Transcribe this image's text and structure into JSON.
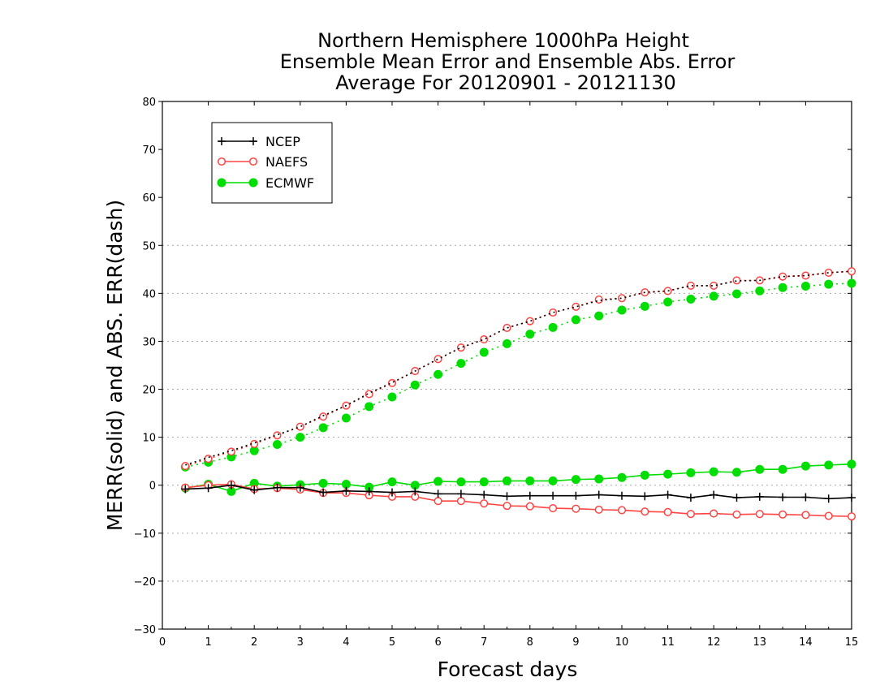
{
  "chart_data": {
    "type": "line",
    "title_lines": [
      "Northern Hemisphere 1000hPa Height",
      "Ensemble Mean Error and Ensemble Abs. Error",
      "Average For 20120901 - 20121130"
    ],
    "xlabel": "Forecast days",
    "ylabel": "MERR(solid) and ABS. ERR(dash)",
    "xlim": [
      0,
      15
    ],
    "ylim": [
      -30,
      80
    ],
    "x_ticks": [
      0,
      1,
      2,
      3,
      4,
      5,
      6,
      7,
      8,
      9,
      10,
      11,
      12,
      13,
      14,
      15
    ],
    "y_ticks": [
      -30,
      -20,
      -10,
      0,
      10,
      20,
      30,
      40,
      50,
      60,
      70,
      80
    ],
    "y_grid": [
      -20,
      -10,
      0,
      10,
      20,
      30,
      40,
      50
    ],
    "legend_position": "top-left",
    "x": [
      0.5,
      1,
      1.5,
      2,
      2.5,
      3,
      3.5,
      4,
      4.5,
      5,
      5.5,
      6,
      6.5,
      7,
      7.5,
      8,
      8.5,
      9,
      9.5,
      10,
      10.5,
      11,
      11.5,
      12,
      12.5,
      13,
      13.5,
      14,
      14.5,
      15
    ],
    "series": [
      {
        "name": "NCEP",
        "color": "#000000",
        "marker": "plus",
        "merr": [
          -0.8,
          -0.6,
          0.0,
          -1.0,
          -0.5,
          -0.5,
          -1.5,
          -1.2,
          -1.3,
          -1.5,
          -1.3,
          -1.8,
          -1.8,
          -2.0,
          -2.3,
          -2.2,
          -2.2,
          -2.2,
          -2.0,
          -2.2,
          -2.3,
          -2.0,
          -2.6,
          -2.0,
          -2.6,
          -2.4,
          -2.5,
          -2.5,
          -2.8,
          -2.6
        ],
        "abs_err": [
          4.2,
          5.8,
          7.2,
          8.8,
          10.5,
          12.2,
          14.5,
          16.6,
          19.2,
          21.4,
          23.8,
          26.3,
          28.7,
          30.4,
          32.8,
          34.2,
          36.0,
          37.2,
          38.5,
          39.0,
          40.2,
          40.5,
          41.6,
          41.6,
          42.6,
          42.7,
          43.5,
          43.7,
          44.3,
          44.6
        ]
      },
      {
        "name": "NAEFS",
        "color": "#ff4444",
        "marker": "open-circle",
        "merr": [
          -0.5,
          0.0,
          0.2,
          -0.8,
          -0.6,
          -0.9,
          -1.6,
          -1.6,
          -2.1,
          -2.4,
          -2.4,
          -3.3,
          -3.3,
          -3.8,
          -4.3,
          -4.4,
          -4.8,
          -4.9,
          -5.1,
          -5.2,
          -5.5,
          -5.6,
          -6.0,
          -5.9,
          -6.1,
          -6.0,
          -6.1,
          -6.2,
          -6.4,
          -6.5
        ],
        "abs_err": [
          4.0,
          5.5,
          7.0,
          8.6,
          10.4,
          12.2,
          14.3,
          16.6,
          19.0,
          21.3,
          23.8,
          26.3,
          28.7,
          30.4,
          32.8,
          34.2,
          36.0,
          37.2,
          38.7,
          39.0,
          40.2,
          40.5,
          41.6,
          41.6,
          42.7,
          42.7,
          43.5,
          43.7,
          44.3,
          44.6
        ]
      },
      {
        "name": "ECMWF",
        "color": "#00dd00",
        "marker": "filled-circle",
        "merr": [
          -0.6,
          0.2,
          -1.3,
          0.4,
          -0.2,
          0.1,
          0.4,
          0.2,
          -0.4,
          0.7,
          0.0,
          0.8,
          0.7,
          0.7,
          0.9,
          0.9,
          0.9,
          1.2,
          1.3,
          1.6,
          2.1,
          2.3,
          2.6,
          2.8,
          2.7,
          3.3,
          3.3,
          4.0,
          4.2,
          4.4
        ],
        "abs_err": [
          3.8,
          4.8,
          5.9,
          7.2,
          8.5,
          10.0,
          12.0,
          14.0,
          16.4,
          18.4,
          20.9,
          23.1,
          25.4,
          27.7,
          29.5,
          31.5,
          32.9,
          34.5,
          35.3,
          36.5,
          37.3,
          38.2,
          38.8,
          39.4,
          39.9,
          40.5,
          41.2,
          41.5,
          41.9,
          42.1
        ]
      }
    ]
  }
}
